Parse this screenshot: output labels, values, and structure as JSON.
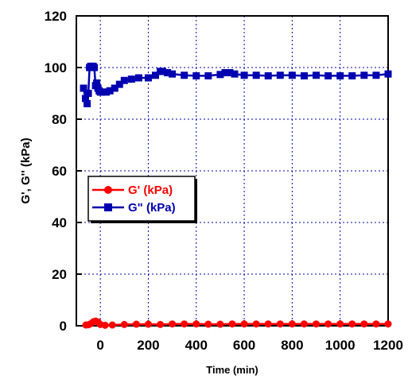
{
  "chart_data": {
    "type": "line",
    "xlabel": "Time (min)",
    "ylabel": "G', G'' (kPa)",
    "xlim": [
      -100,
      1200
    ],
    "ylim": [
      0,
      120
    ],
    "x_ticks": [
      0,
      200,
      400,
      600,
      800,
      1000,
      1200
    ],
    "y_ticks": [
      0,
      20,
      40,
      60,
      80,
      100,
      120
    ],
    "grid": true,
    "grid_style": "dashed",
    "legend_position": "middle-left",
    "series": [
      {
        "name": "G' (kPa)",
        "color": "#ff0000",
        "marker": "circle",
        "x": [
          -60,
          -50,
          -40,
          -30,
          -20,
          -10,
          0,
          20,
          50,
          100,
          150,
          200,
          250,
          300,
          350,
          400,
          450,
          500,
          550,
          600,
          650,
          700,
          750,
          800,
          850,
          900,
          950,
          1000,
          1050,
          1100,
          1150,
          1200
        ],
        "y": [
          0.3,
          0.4,
          0.8,
          1.5,
          1.8,
          1.5,
          0.5,
          0.2,
          0.3,
          0.5,
          0.6,
          0.6,
          0.5,
          0.7,
          0.7,
          0.7,
          0.6,
          0.6,
          0.7,
          0.7,
          0.7,
          0.7,
          0.7,
          0.7,
          0.7,
          0.7,
          0.7,
          0.7,
          0.7,
          0.7,
          0.7,
          0.7
        ]
      },
      {
        "name": "G\" (kPa)",
        "color": "#0000b0",
        "marker": "square",
        "x": [
          -70,
          -62,
          -55,
          -50,
          -45,
          -40,
          -35,
          -30,
          -25,
          -20,
          -15,
          -10,
          -5,
          0,
          10,
          25,
          40,
          60,
          80,
          100,
          130,
          160,
          200,
          230,
          250,
          260,
          280,
          300,
          350,
          400,
          450,
          500,
          520,
          540,
          560,
          600,
          650,
          700,
          750,
          800,
          850,
          900,
          950,
          1000,
          1050,
          1100,
          1150,
          1200
        ],
        "y": [
          92,
          88,
          86,
          90,
          100,
          100.5,
          100,
          100.5,
          100,
          93,
          94,
          92,
          91,
          90.5,
          90.5,
          90.5,
          91,
          92,
          93.5,
          95,
          95.5,
          96,
          96,
          97,
          98.5,
          98.5,
          98,
          97.5,
          97,
          96.8,
          96.8,
          97.3,
          98,
          98,
          97.5,
          97,
          97,
          96.8,
          97,
          97,
          96.8,
          97,
          96.8,
          96.8,
          96.8,
          97,
          97,
          97.5
        ]
      }
    ]
  }
}
